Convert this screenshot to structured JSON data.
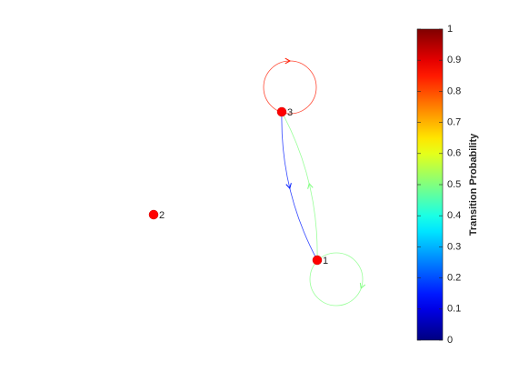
{
  "nodes": [
    {
      "label": "1"
    },
    {
      "label": "2"
    },
    {
      "label": "3"
    }
  ],
  "edges": [
    {
      "source": 0,
      "target": 0,
      "probability": 0.5
    },
    {
      "source": 0,
      "target": 2,
      "probability": 0.5
    },
    {
      "source": 2,
      "target": 0,
      "probability": 0.15
    },
    {
      "source": 2,
      "target": 2,
      "probability": 0.85
    }
  ],
  "colorbar": {
    "label": "Transition Probability",
    "clim": [
      0,
      1
    ],
    "ticks": [
      0,
      0.1,
      0.2,
      0.3,
      0.4,
      0.5,
      0.6,
      0.7,
      0.8,
      0.9,
      1
    ]
  }
}
